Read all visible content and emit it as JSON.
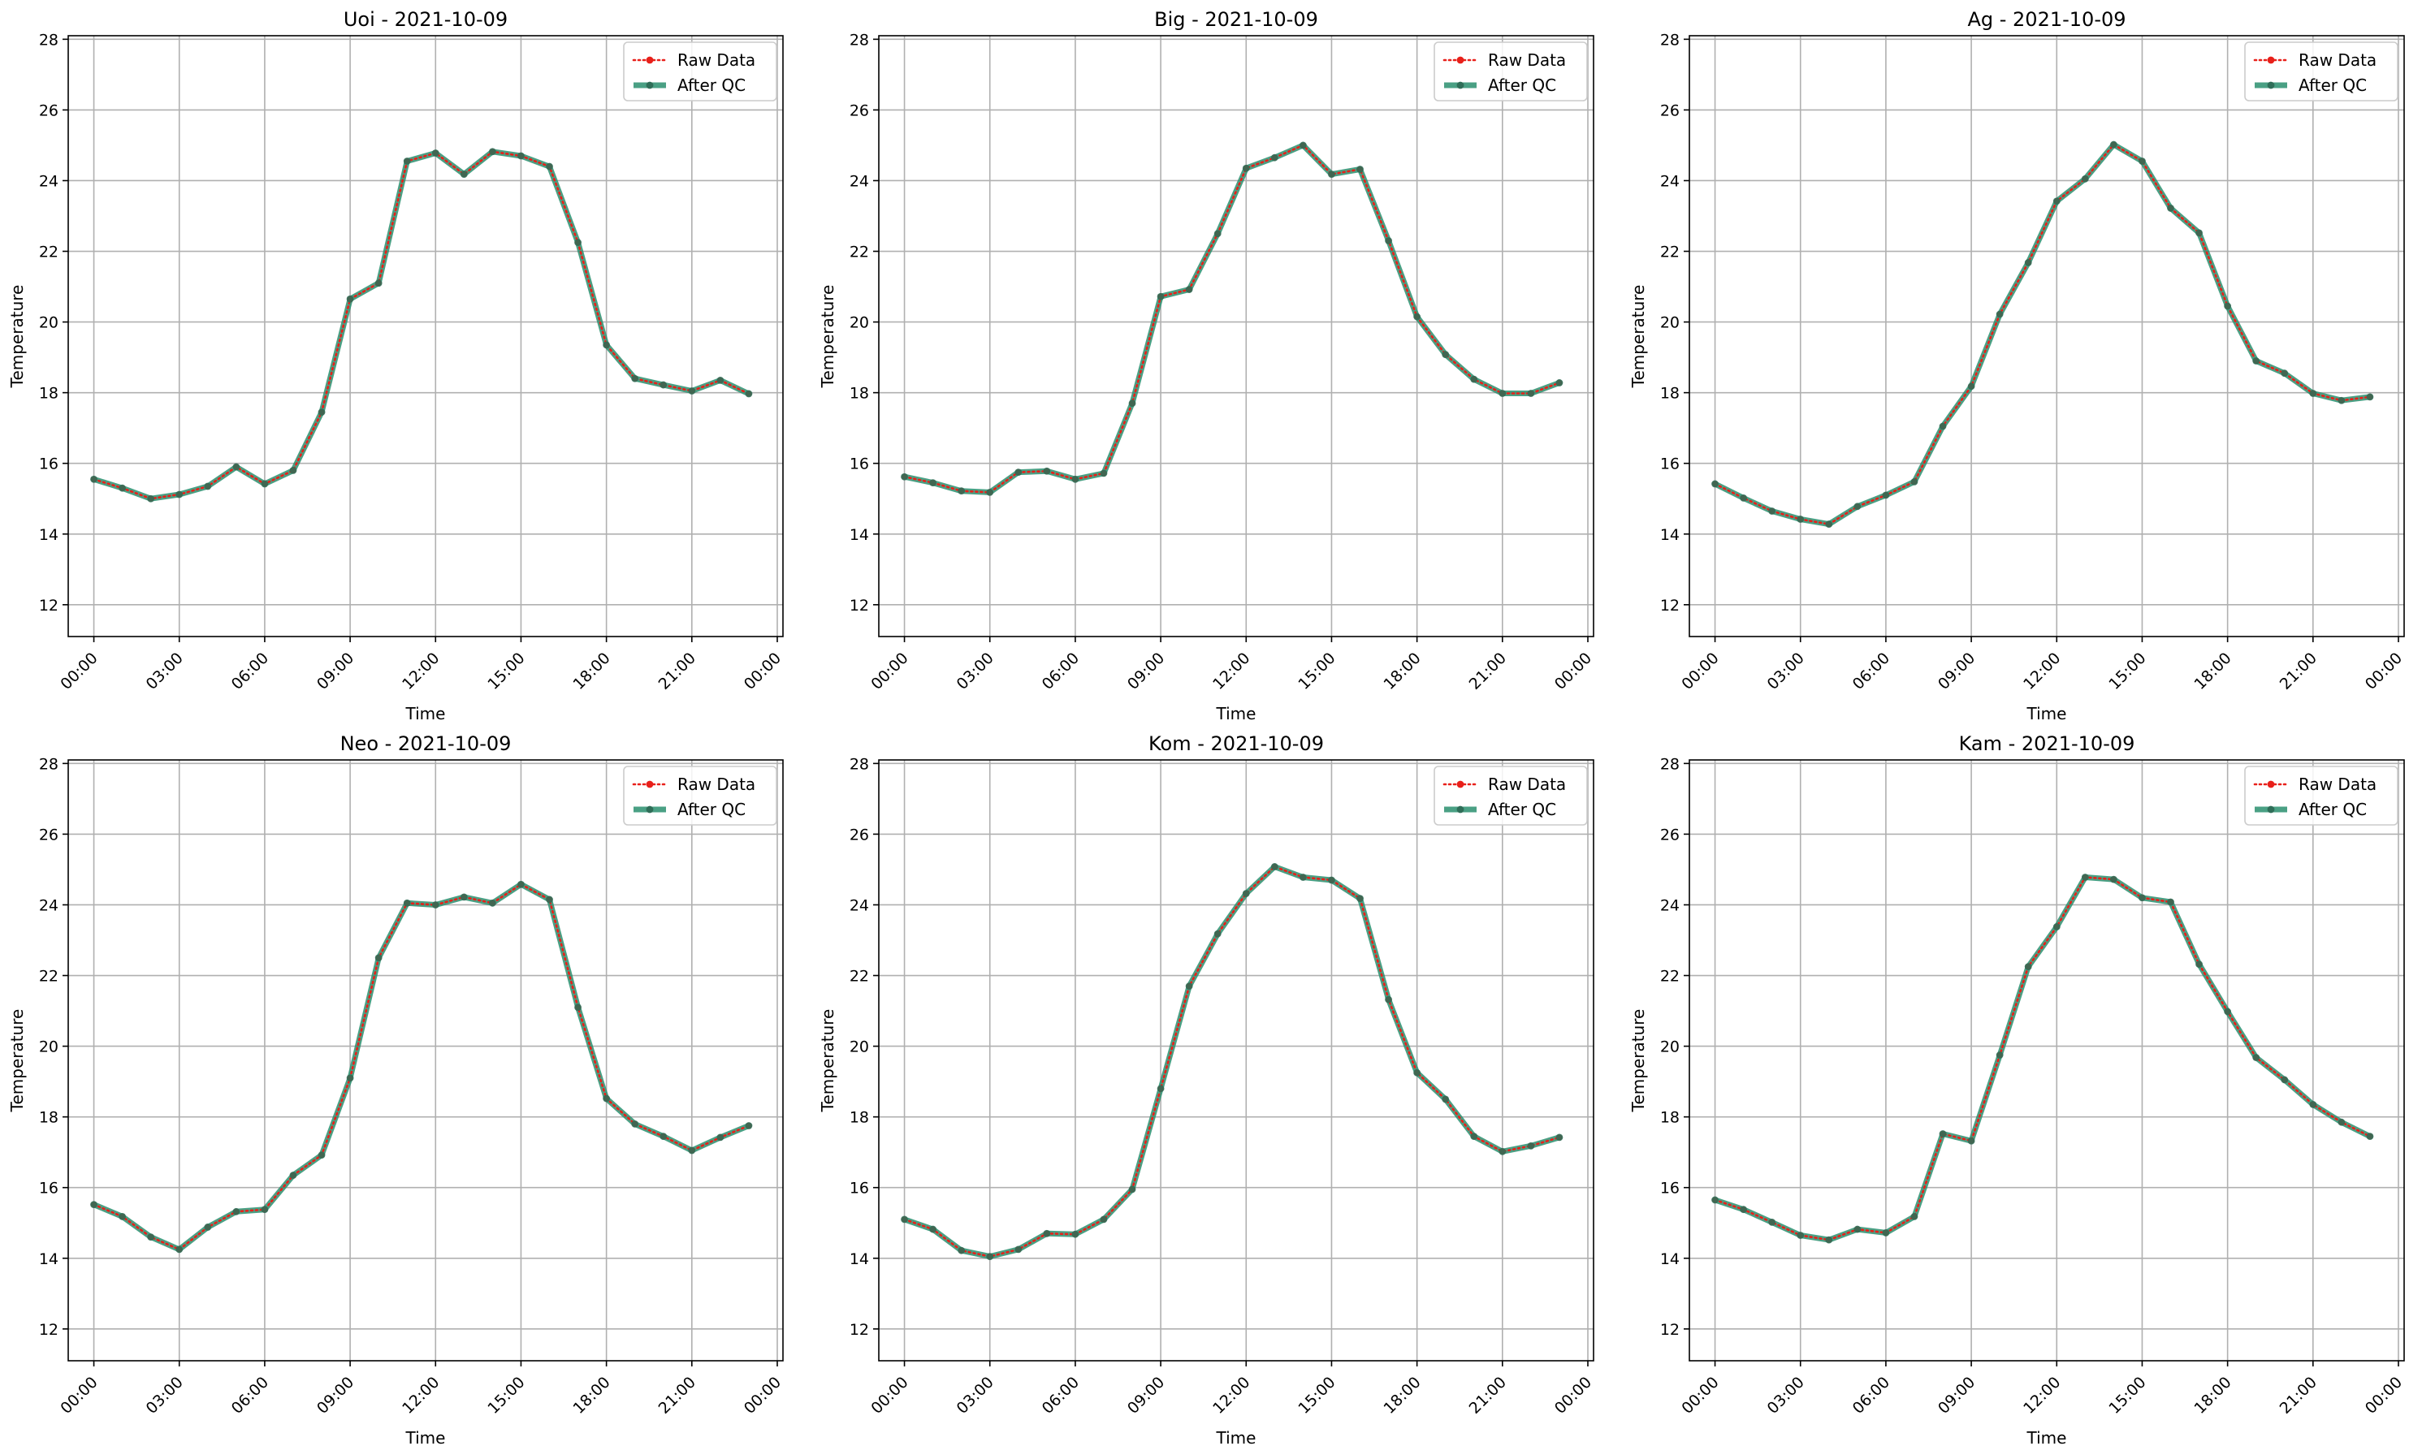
{
  "colors": {
    "raw": "#e8201a",
    "qc": "#2a8f6f",
    "qc_marker": "#2f6e58",
    "grid": "#b0b0b0"
  },
  "legend_placement": "top-right",
  "chart_data": [
    {
      "type": "line",
      "title": "Uoi - 2021-10-09",
      "xlabel": "Time",
      "ylabel": "Temperature",
      "xlim": [
        -0.9,
        24.2
      ],
      "ylim": [
        11.1,
        28.1
      ],
      "xticks": [
        0,
        3,
        6,
        9,
        12,
        15,
        18,
        21,
        24
      ],
      "xtick_labels": [
        "00:00",
        "03:00",
        "06:00",
        "09:00",
        "12:00",
        "15:00",
        "18:00",
        "21:00",
        "00:00"
      ],
      "yticks": [
        12,
        14,
        16,
        18,
        20,
        22,
        24,
        26,
        28
      ],
      "grid": true,
      "x": [
        0,
        1,
        2,
        3,
        4,
        5,
        6,
        7,
        8,
        9,
        10,
        11,
        12,
        13,
        14,
        15,
        16,
        17,
        18,
        19,
        20,
        21,
        22,
        23
      ],
      "series": [
        {
          "name": "Raw Data",
          "values": [
            15.55,
            15.3,
            15.0,
            15.12,
            15.35,
            15.9,
            15.42,
            15.8,
            17.45,
            20.65,
            21.1,
            24.55,
            24.78,
            24.18,
            24.82,
            24.7,
            24.4,
            22.25,
            19.35,
            18.4,
            18.22,
            18.05,
            18.35,
            17.97
          ]
        },
        {
          "name": "After QC",
          "values": [
            15.55,
            15.3,
            15.0,
            15.12,
            15.35,
            15.9,
            15.42,
            15.8,
            17.45,
            20.65,
            21.1,
            24.55,
            24.78,
            24.18,
            24.82,
            24.7,
            24.4,
            22.25,
            19.35,
            18.4,
            18.22,
            18.05,
            18.35,
            17.97
          ]
        }
      ]
    },
    {
      "type": "line",
      "title": "Big - 2021-10-09",
      "xlabel": "Time",
      "ylabel": "Temperature",
      "xlim": [
        -0.9,
        24.2
      ],
      "ylim": [
        11.1,
        28.1
      ],
      "xticks": [
        0,
        3,
        6,
        9,
        12,
        15,
        18,
        21,
        24
      ],
      "xtick_labels": [
        "00:00",
        "03:00",
        "06:00",
        "09:00",
        "12:00",
        "15:00",
        "18:00",
        "21:00",
        "00:00"
      ],
      "yticks": [
        12,
        14,
        16,
        18,
        20,
        22,
        24,
        26,
        28
      ],
      "grid": true,
      "x": [
        0,
        1,
        2,
        3,
        4,
        5,
        6,
        7,
        8,
        9,
        10,
        11,
        12,
        13,
        14,
        15,
        16,
        17,
        18,
        19,
        20,
        21,
        22,
        23
      ],
      "series": [
        {
          "name": "Raw Data",
          "values": [
            15.62,
            15.45,
            15.22,
            15.18,
            15.75,
            15.78,
            15.55,
            15.72,
            17.7,
            20.72,
            20.92,
            22.5,
            24.35,
            24.65,
            25.0,
            24.18,
            24.32,
            22.3,
            20.15,
            19.08,
            18.38,
            17.98,
            17.98,
            18.28
          ]
        },
        {
          "name": "After QC",
          "values": [
            15.62,
            15.45,
            15.22,
            15.18,
            15.75,
            15.78,
            15.55,
            15.72,
            17.7,
            20.72,
            20.92,
            22.5,
            24.35,
            24.65,
            25.0,
            24.18,
            24.32,
            22.3,
            20.15,
            19.08,
            18.38,
            17.98,
            17.98,
            18.28
          ]
        }
      ]
    },
    {
      "type": "line",
      "title": "Ag - 2021-10-09",
      "xlabel": "Time",
      "ylabel": "Temperature",
      "xlim": [
        -0.9,
        24.2
      ],
      "ylim": [
        11.1,
        28.1
      ],
      "xticks": [
        0,
        3,
        6,
        9,
        12,
        15,
        18,
        21,
        24
      ],
      "xtick_labels": [
        "00:00",
        "03:00",
        "06:00",
        "09:00",
        "12:00",
        "15:00",
        "18:00",
        "21:00",
        "00:00"
      ],
      "yticks": [
        12,
        14,
        16,
        18,
        20,
        22,
        24,
        26,
        28
      ],
      "grid": true,
      "x": [
        0,
        1,
        2,
        3,
        4,
        5,
        6,
        7,
        8,
        9,
        10,
        11,
        12,
        13,
        14,
        15,
        16,
        17,
        18,
        19,
        20,
        21,
        22,
        23
      ],
      "series": [
        {
          "name": "Raw Data",
          "values": [
            15.42,
            15.02,
            14.65,
            14.42,
            14.28,
            14.78,
            15.1,
            15.48,
            17.05,
            18.18,
            20.22,
            21.68,
            23.42,
            24.05,
            25.02,
            24.55,
            23.22,
            22.52,
            20.45,
            18.9,
            18.55,
            17.98,
            17.78,
            17.88
          ]
        },
        {
          "name": "After QC",
          "values": [
            15.42,
            15.02,
            14.65,
            14.42,
            14.28,
            14.78,
            15.1,
            15.48,
            17.05,
            18.18,
            20.22,
            21.68,
            23.42,
            24.05,
            25.02,
            24.55,
            23.22,
            22.52,
            20.45,
            18.9,
            18.55,
            17.98,
            17.78,
            17.88
          ]
        }
      ]
    },
    {
      "type": "line",
      "title": "Neo - 2021-10-09",
      "xlabel": "Time",
      "ylabel": "Temperature",
      "xlim": [
        -0.9,
        24.2
      ],
      "ylim": [
        11.1,
        28.1
      ],
      "xticks": [
        0,
        3,
        6,
        9,
        12,
        15,
        18,
        21,
        24
      ],
      "xtick_labels": [
        "00:00",
        "03:00",
        "06:00",
        "09:00",
        "12:00",
        "15:00",
        "18:00",
        "21:00",
        "00:00"
      ],
      "yticks": [
        12,
        14,
        16,
        18,
        20,
        22,
        24,
        26,
        28
      ],
      "grid": true,
      "x": [
        0,
        1,
        2,
        3,
        4,
        5,
        6,
        7,
        8,
        9,
        10,
        11,
        12,
        13,
        14,
        15,
        16,
        17,
        18,
        19,
        20,
        21,
        22,
        23
      ],
      "series": [
        {
          "name": "Raw Data",
          "values": [
            15.52,
            15.18,
            14.6,
            14.25,
            14.88,
            15.32,
            15.38,
            16.35,
            16.92,
            19.1,
            22.5,
            24.05,
            24.0,
            24.22,
            24.05,
            24.58,
            24.15,
            21.1,
            18.52,
            17.8,
            17.45,
            17.05,
            17.42,
            17.75
          ]
        },
        {
          "name": "After QC",
          "values": [
            15.52,
            15.18,
            14.6,
            14.25,
            14.88,
            15.32,
            15.38,
            16.35,
            16.92,
            19.1,
            22.5,
            24.05,
            24.0,
            24.22,
            24.05,
            24.58,
            24.15,
            21.1,
            18.52,
            17.8,
            17.45,
            17.05,
            17.42,
            17.75
          ]
        }
      ]
    },
    {
      "type": "line",
      "title": "Kom - 2021-10-09",
      "xlabel": "Time",
      "ylabel": "Temperature",
      "xlim": [
        -0.9,
        24.2
      ],
      "ylim": [
        11.1,
        28.1
      ],
      "xticks": [
        0,
        3,
        6,
        9,
        12,
        15,
        18,
        21,
        24
      ],
      "xtick_labels": [
        "00:00",
        "03:00",
        "06:00",
        "09:00",
        "12:00",
        "15:00",
        "18:00",
        "21:00",
        "00:00"
      ],
      "yticks": [
        12,
        14,
        16,
        18,
        20,
        22,
        24,
        26,
        28
      ],
      "grid": true,
      "x": [
        0,
        1,
        2,
        3,
        4,
        5,
        6,
        7,
        8,
        9,
        10,
        11,
        12,
        13,
        14,
        15,
        16,
        17,
        18,
        19,
        20,
        21,
        22,
        23
      ],
      "series": [
        {
          "name": "Raw Data",
          "values": [
            15.1,
            14.82,
            14.22,
            14.05,
            14.25,
            14.7,
            14.68,
            15.1,
            15.95,
            18.8,
            21.7,
            23.18,
            24.32,
            25.08,
            24.78,
            24.7,
            24.18,
            21.32,
            19.25,
            18.5,
            17.45,
            17.02,
            17.18,
            17.42
          ]
        },
        {
          "name": "After QC",
          "values": [
            15.1,
            14.82,
            14.22,
            14.05,
            14.25,
            14.7,
            14.68,
            15.1,
            15.95,
            18.8,
            21.7,
            23.18,
            24.32,
            25.08,
            24.78,
            24.7,
            24.18,
            21.32,
            19.25,
            18.5,
            17.45,
            17.02,
            17.18,
            17.42
          ]
        }
      ]
    },
    {
      "type": "line",
      "title": "Kam - 2021-10-09",
      "xlabel": "Time",
      "ylabel": "Temperature",
      "xlim": [
        -0.9,
        24.2
      ],
      "ylim": [
        11.1,
        28.1
      ],
      "xticks": [
        0,
        3,
        6,
        9,
        12,
        15,
        18,
        21,
        24
      ],
      "xtick_labels": [
        "00:00",
        "03:00",
        "06:00",
        "09:00",
        "12:00",
        "15:00",
        "18:00",
        "21:00",
        "00:00"
      ],
      "yticks": [
        12,
        14,
        16,
        18,
        20,
        22,
        24,
        26,
        28
      ],
      "grid": true,
      "x": [
        0,
        1,
        2,
        3,
        4,
        5,
        6,
        7,
        8,
        9,
        10,
        11,
        12,
        13,
        14,
        15,
        16,
        17,
        18,
        19,
        20,
        21,
        22,
        23
      ],
      "series": [
        {
          "name": "Raw Data",
          "values": [
            15.65,
            15.38,
            15.02,
            14.65,
            14.52,
            14.82,
            14.72,
            15.18,
            17.52,
            17.32,
            19.75,
            22.25,
            23.38,
            24.78,
            24.72,
            24.2,
            24.08,
            22.32,
            20.98,
            19.68,
            19.05,
            18.35,
            17.85,
            17.45
          ]
        },
        {
          "name": "After QC",
          "values": [
            15.65,
            15.38,
            15.02,
            14.65,
            14.52,
            14.82,
            14.72,
            15.18,
            17.52,
            17.32,
            19.75,
            22.25,
            23.38,
            24.78,
            24.72,
            24.2,
            24.08,
            22.32,
            20.98,
            19.68,
            19.05,
            18.35,
            17.85,
            17.45
          ]
        }
      ]
    }
  ]
}
